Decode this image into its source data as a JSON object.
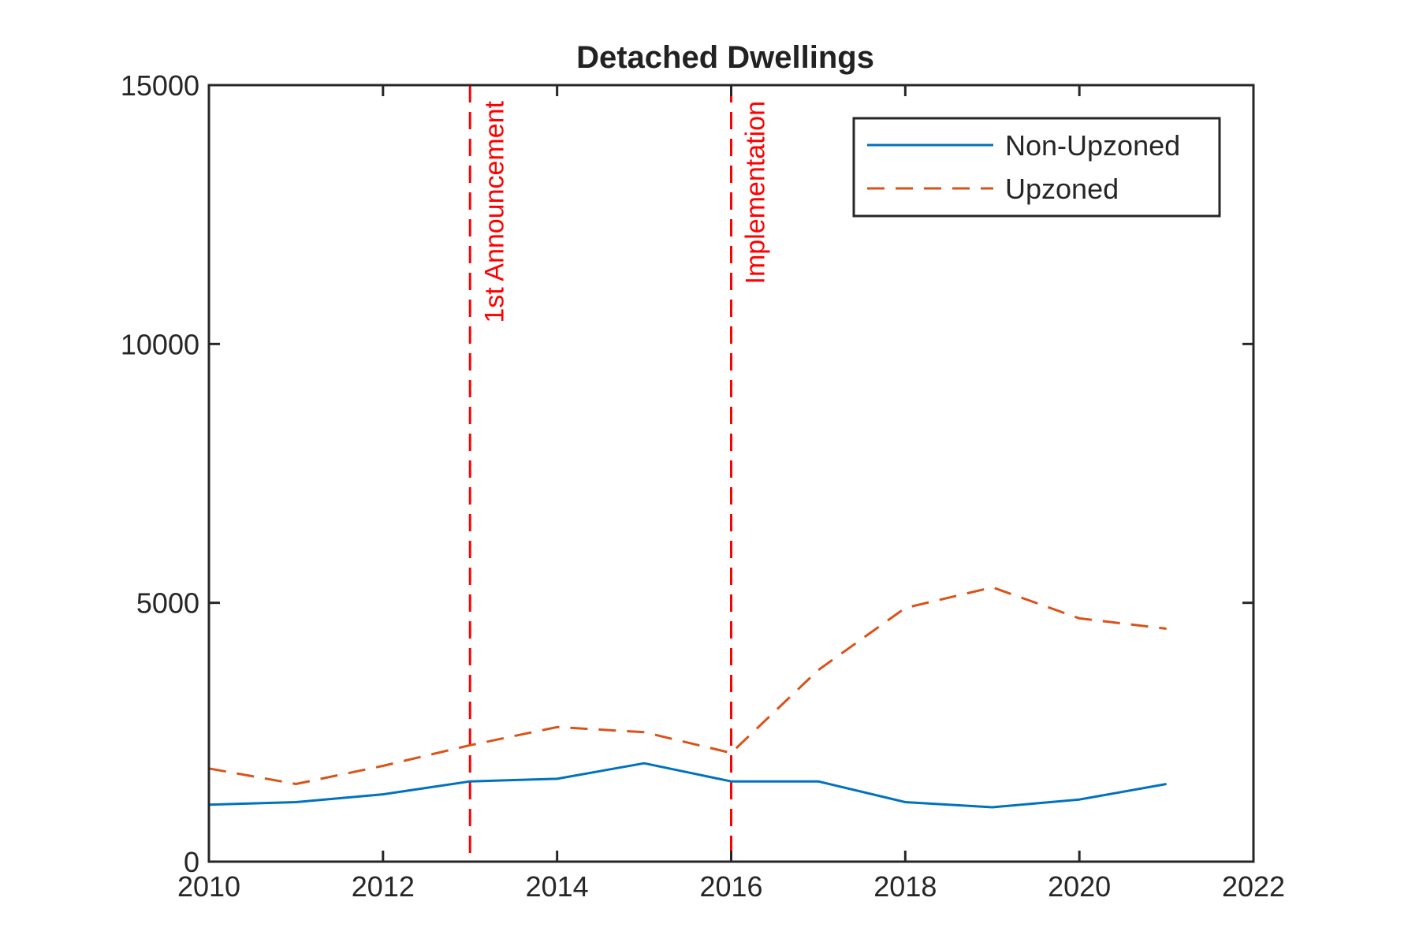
{
  "chart_data": {
    "type": "line",
    "title": "Detached Dwellings",
    "xlabel": "",
    "ylabel": "",
    "xlim": [
      2010,
      2022
    ],
    "ylim": [
      0,
      15000
    ],
    "x_ticks": [
      2010,
      2012,
      2014,
      2016,
      2018,
      2020,
      2022
    ],
    "y_ticks": [
      0,
      5000,
      10000,
      15000
    ],
    "grid": false,
    "legend_position": "top-right",
    "x": [
      2010,
      2011,
      2012,
      2013,
      2014,
      2015,
      2016,
      2017,
      2018,
      2019,
      2020,
      2021
    ],
    "series": [
      {
        "name": "Non-Upzoned",
        "color": "#0072BD",
        "line_style": "solid",
        "values": [
          1100,
          1150,
          1300,
          1550,
          1600,
          1900,
          1550,
          1550,
          1150,
          1050,
          1200,
          1500
        ]
      },
      {
        "name": "Upzoned",
        "color": "#D95319",
        "line_style": "dashed",
        "values": [
          1800,
          1500,
          1850,
          2250,
          2600,
          2500,
          2100,
          3700,
          4900,
          5300,
          4700,
          4500
        ]
      }
    ],
    "vertical_lines": [
      {
        "x": 2013,
        "label": "1st Announcement",
        "color": "#FF0000"
      },
      {
        "x": 2016,
        "label": "Implementation",
        "color": "#FF0000"
      }
    ]
  }
}
